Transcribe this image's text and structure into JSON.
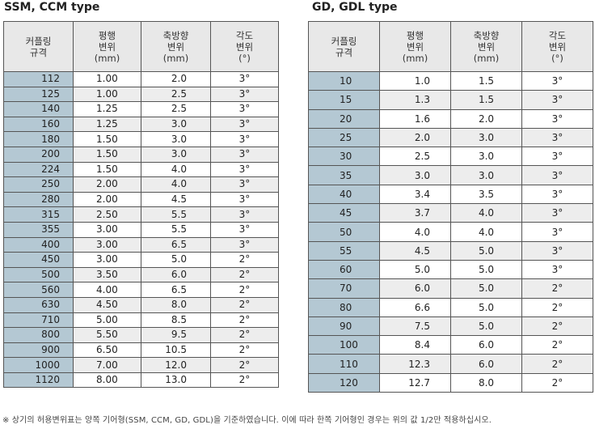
{
  "left": {
    "title": "SSM, CCM type",
    "headers": [
      [
        "커플링",
        "규격"
      ],
      [
        "평행",
        "변위",
        "(mm)"
      ],
      [
        "축방향",
        "변위",
        "(mm)"
      ],
      [
        "각도",
        "변위",
        "(°)"
      ]
    ],
    "rows": [
      [
        "112",
        "1.00",
        "2.0",
        "3°"
      ],
      [
        "125",
        "1.00",
        "2.5",
        "3°"
      ],
      [
        "140",
        "1.25",
        "2.5",
        "3°"
      ],
      [
        "160",
        "1.25",
        "3.0",
        "3°"
      ],
      [
        "180",
        "1.50",
        "3.0",
        "3°"
      ],
      [
        "200",
        "1.50",
        "3.0",
        "3°"
      ],
      [
        "224",
        "1.50",
        "4.0",
        "3°"
      ],
      [
        "250",
        "2.00",
        "4.0",
        "3°"
      ],
      [
        "280",
        "2.00",
        "4.5",
        "3°"
      ],
      [
        "315",
        "2.50",
        "5.5",
        "3°"
      ],
      [
        "355",
        "3.00",
        "5.5",
        "3°"
      ],
      [
        "400",
        "3.00",
        "6.5",
        "3°"
      ],
      [
        "450",
        "3.00",
        "5.0",
        "2°"
      ],
      [
        "500",
        "3.50",
        "6.0",
        "2°"
      ],
      [
        "560",
        "4.00",
        "6.5",
        "2°"
      ],
      [
        "630",
        "4.50",
        "8.0",
        "2°"
      ],
      [
        "710",
        "5.00",
        "8.5",
        "2°"
      ],
      [
        "800",
        "5.50",
        "9.5",
        "2°"
      ],
      [
        "900",
        "6.50",
        "10.5",
        "2°"
      ],
      [
        "1000",
        "7.00",
        "12.0",
        "2°"
      ],
      [
        "1120",
        "8.00",
        "13.0",
        "2°"
      ]
    ]
  },
  "right": {
    "title": "GD, GDL type",
    "headers": [
      [
        "커플링",
        "규격"
      ],
      [
        "평행",
        "변위",
        "(mm)"
      ],
      [
        "축방향",
        "변위",
        "(mm)"
      ],
      [
        "각도",
        "변위",
        "(°)"
      ]
    ],
    "rows": [
      [
        "10",
        "1.0",
        "1.5",
        "3°"
      ],
      [
        "15",
        "1.3",
        "1.5",
        "3°"
      ],
      [
        "20",
        "1.6",
        "2.0",
        "3°"
      ],
      [
        "25",
        "2.0",
        "3.0",
        "3°"
      ],
      [
        "30",
        "2.5",
        "3.0",
        "3°"
      ],
      [
        "35",
        "3.0",
        "3.0",
        "3°"
      ],
      [
        "40",
        "3.4",
        "3.5",
        "3°"
      ],
      [
        "45",
        "3.7",
        "4.0",
        "3°"
      ],
      [
        "50",
        "4.0",
        "4.0",
        "3°"
      ],
      [
        "55",
        "4.5",
        "5.0",
        "3°"
      ],
      [
        "60",
        "5.0",
        "5.0",
        "3°"
      ],
      [
        "70",
        "6.0",
        "5.0",
        "2°"
      ],
      [
        "80",
        "6.6",
        "5.0",
        "2°"
      ],
      [
        "90",
        "7.5",
        "5.0",
        "2°"
      ],
      [
        "100",
        "8.4",
        "6.0",
        "2°"
      ],
      [
        "110",
        "12.3",
        "6.0",
        "2°"
      ],
      [
        "120",
        "12.7",
        "8.0",
        "2°"
      ]
    ]
  },
  "note": "※ 상기의 허용변위표는 양쪽 기어형(SSM, CCM, GD, GDL)을 기준하였습니다. 이에 따라 한쪽 기어형인 경우는 위의 값 1/2만 적용하십시오.",
  "colors": {
    "size_column": "#b4c8d3",
    "header": "#e8e8e8",
    "row_alt": "#ededed"
  }
}
